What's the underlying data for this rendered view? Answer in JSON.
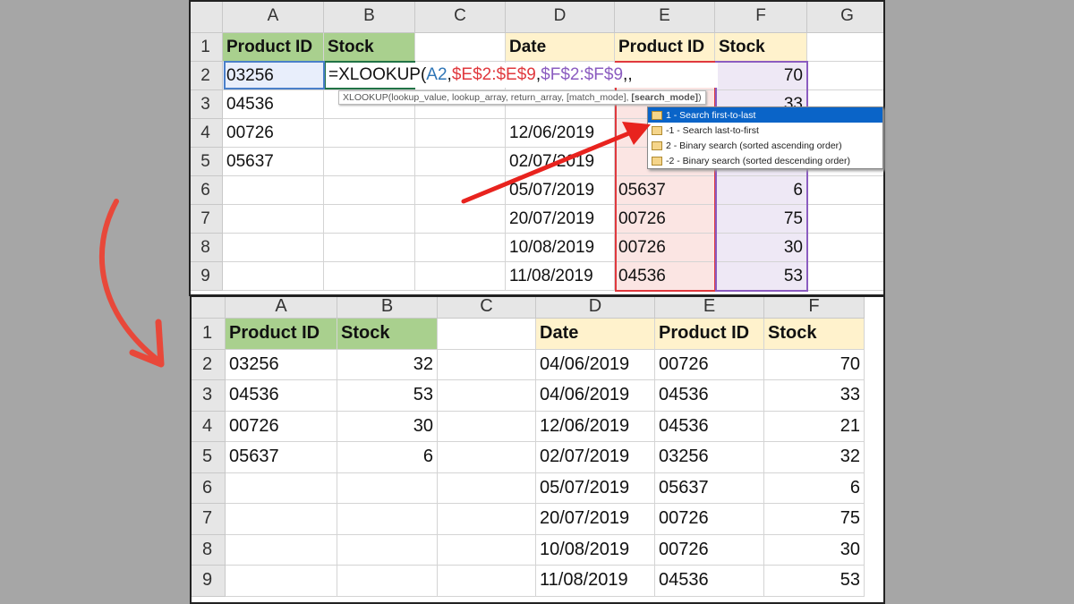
{
  "top_sheet": {
    "columns": [
      "A",
      "B",
      "C",
      "D",
      "E",
      "F",
      "G"
    ],
    "rows": [
      "1",
      "2",
      "3",
      "4",
      "5",
      "6",
      "7",
      "8",
      "9"
    ],
    "cells": {
      "A1": "Product ID",
      "B1": "Stock",
      "D1": "Date",
      "E1": "Product ID",
      "F1": "Stock",
      "A2": "03256",
      "F2": "70",
      "A3": "04536",
      "F3": "33",
      "A4": "00726",
      "D4": "12/06/2019",
      "A5": "05637",
      "D5": "02/07/2019",
      "D6": "05/07/2019",
      "E6": "05637",
      "F6": "6",
      "D7": "20/07/2019",
      "E7": "00726",
      "F7": "75",
      "D8": "10/08/2019",
      "E8": "00726",
      "F8": "30",
      "D9": "11/08/2019",
      "E9": "04536",
      "F9": "53"
    },
    "formula": {
      "prefix": "=XLOOKUP(",
      "arg1": "A2",
      "sep": ",",
      "arg2": "$E$2:$E$9",
      "arg3": "$F$2:$F$9",
      "suffix": ",,"
    },
    "formula_colors": {
      "arg1": "#2e75b6",
      "arg2": "#e0393e",
      "arg3": "#8b5cc0"
    },
    "tooltip": {
      "text": "XLOOKUP(lookup_value, lookup_array, return_array, [match_mode], ",
      "bold": "[search_mode]",
      "close": ")"
    },
    "dropdown": [
      "1 - Search first-to-last",
      "-1 - Search last-to-first",
      "2 - Binary search (sorted ascending order)",
      "-2 - Binary search (sorted descending order)"
    ],
    "selected_option": 0
  },
  "bottom_sheet": {
    "columns": [
      "A",
      "B",
      "C",
      "D",
      "E",
      "F"
    ],
    "rows": [
      "1",
      "2",
      "3",
      "4",
      "5",
      "6",
      "7",
      "8",
      "9"
    ],
    "cells": {
      "A1": "Product ID",
      "B1": "Stock",
      "D1": "Date",
      "E1": "Product ID",
      "F1": "Stock",
      "A2": "03256",
      "B2": "32",
      "D2": "04/06/2019",
      "E2": "00726",
      "F2": "70",
      "A3": "04536",
      "B3": "53",
      "D3": "04/06/2019",
      "E3": "04536",
      "F3": "33",
      "A4": "00726",
      "B4": "30",
      "D4": "12/06/2019",
      "E4": "04536",
      "F4": "21",
      "A5": "05637",
      "B5": "6",
      "D5": "02/07/2019",
      "E5": "03256",
      "F5": "32",
      "D6": "05/07/2019",
      "E6": "05637",
      "F6": "6",
      "D7": "20/07/2019",
      "E7": "00726",
      "F7": "75",
      "D8": "10/08/2019",
      "E8": "00726",
      "F8": "30",
      "D9": "11/08/2019",
      "E9": "04536",
      "F9": "53"
    }
  },
  "colors": {
    "header_green": "#a9d08e",
    "header_tan": "#fff2cc",
    "arrow": "#e8483a",
    "selection": "#0a64c8"
  }
}
